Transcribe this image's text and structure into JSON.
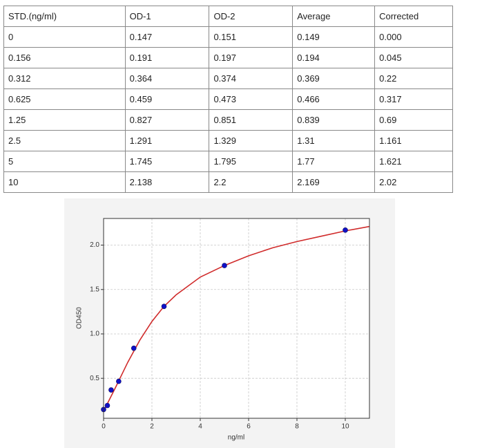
{
  "table": {
    "header": [
      "STD.(ng/ml)",
      "OD-1",
      "OD-2",
      "Average",
      "Corrected"
    ],
    "rows": [
      [
        "0",
        "0.147",
        "0.151",
        "0.149",
        "0.000"
      ],
      [
        "0.156",
        "0.191",
        "0.197",
        "0.194",
        "0.045"
      ],
      [
        "0.312",
        "0.364",
        "0.374",
        "0.369",
        "0.22"
      ],
      [
        "0.625",
        "0.459",
        "0.473",
        "0.466",
        "0.317"
      ],
      [
        "1.25",
        "0.827",
        "0.851",
        "0.839",
        "0.69"
      ],
      [
        "2.5",
        "1.291",
        "1.329",
        "1.31",
        "1.161"
      ],
      [
        "5",
        "1.745",
        "1.795",
        "1.77",
        "1.621"
      ],
      [
        "10",
        "2.138",
        "2.2",
        "2.169",
        "2.02"
      ]
    ]
  },
  "chart_data": {
    "type": "scatter",
    "x_label": "ng/ml",
    "y_label": "OD450",
    "xlim": [
      0,
      11
    ],
    "ylim": [
      0.05,
      2.3
    ],
    "xticks": [
      0,
      2,
      4,
      6,
      8,
      10
    ],
    "yticks": [
      0.5,
      {
        "value": 1.0,
        "label": "1.0"
      },
      1.5,
      {
        "value": 2.0,
        "label": "2.0"
      }
    ],
    "grid": true,
    "series": [
      {
        "kind": "points",
        "color": "#1010c8",
        "x": [
          0,
          0.156,
          0.312,
          0.625,
          1.25,
          2.5,
          5,
          10
        ],
        "values": [
          0.149,
          0.194,
          0.369,
          0.466,
          0.839,
          1.31,
          1.77,
          2.169
        ]
      },
      {
        "kind": "line",
        "color": "#d02a2a",
        "x": [
          0,
          0.5,
          1,
          1.5,
          2,
          2.5,
          3,
          4,
          5,
          6,
          7,
          8,
          9,
          10,
          11
        ],
        "values": [
          0.13,
          0.4,
          0.68,
          0.93,
          1.14,
          1.31,
          1.44,
          1.64,
          1.77,
          1.88,
          1.97,
          2.04,
          2.1,
          2.16,
          2.21
        ]
      }
    ]
  }
}
